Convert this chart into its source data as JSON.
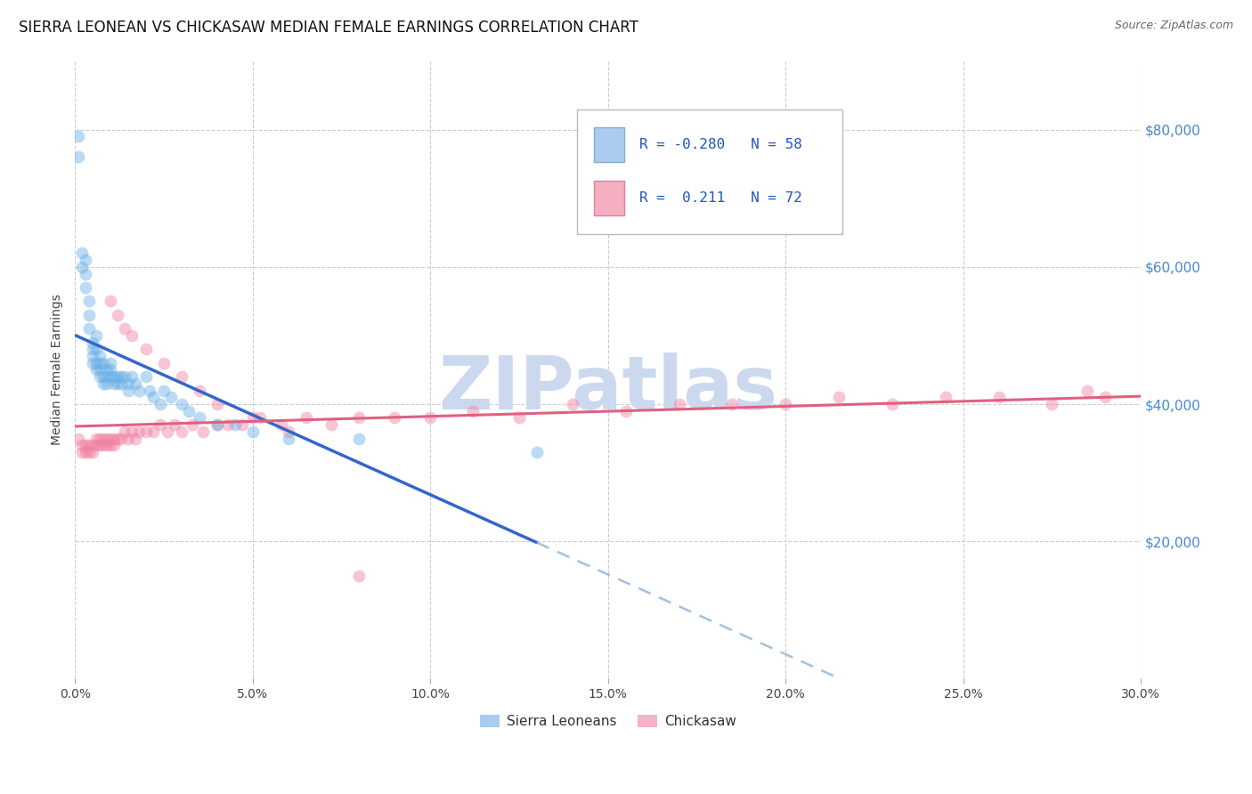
{
  "title": "SIERRA LEONEAN VS CHICKASAW MEDIAN FEMALE EARNINGS CORRELATION CHART",
  "source": "Source: ZipAtlas.com",
  "ylabel": "Median Female Earnings",
  "xlabel_ticks": [
    "0.0%",
    "5.0%",
    "10.0%",
    "15.0%",
    "20.0%",
    "25.0%",
    "30.0%"
  ],
  "ytick_labels": [
    "$20,000",
    "$40,000",
    "$60,000",
    "$80,000"
  ],
  "ytick_values": [
    20000,
    40000,
    60000,
    80000
  ],
  "xlim": [
    0.0,
    0.3
  ],
  "ylim": [
    0,
    90000
  ],
  "watermark": "ZIPatlas",
  "sl_color": "#6aaee6",
  "ck_color": "#f080a0",
  "sl_line_color": "#3366cc",
  "sl_dash_color": "#99bbdd",
  "ck_line_color": "#e06080",
  "background_color": "#ffffff",
  "grid_color": "#cccccc",
  "title_fontsize": 12,
  "axis_label_fontsize": 10,
  "tick_fontsize": 10,
  "watermark_color": "#ccd8ee",
  "watermark_fontsize": 60,
  "sl_R": -0.28,
  "sl_N": 58,
  "ck_R": 0.211,
  "ck_N": 72,
  "sl_x": [
    0.001,
    0.001,
    0.002,
    0.002,
    0.003,
    0.003,
    0.003,
    0.004,
    0.004,
    0.004,
    0.005,
    0.005,
    0.005,
    0.005,
    0.006,
    0.006,
    0.006,
    0.006,
    0.007,
    0.007,
    0.007,
    0.007,
    0.008,
    0.008,
    0.008,
    0.009,
    0.009,
    0.009,
    0.01,
    0.01,
    0.01,
    0.011,
    0.011,
    0.012,
    0.012,
    0.013,
    0.013,
    0.014,
    0.015,
    0.015,
    0.016,
    0.017,
    0.018,
    0.02,
    0.021,
    0.022,
    0.024,
    0.025,
    0.027,
    0.03,
    0.032,
    0.035,
    0.04,
    0.045,
    0.05,
    0.06,
    0.08,
    0.13
  ],
  "sl_y": [
    79000,
    76000,
    62000,
    60000,
    61000,
    59000,
    57000,
    55000,
    53000,
    51000,
    49000,
    48000,
    47000,
    46000,
    50000,
    48000,
    46000,
    45000,
    47000,
    46000,
    45000,
    44000,
    46000,
    44000,
    43000,
    45000,
    44000,
    43000,
    46000,
    45000,
    44000,
    44000,
    43000,
    44000,
    43000,
    44000,
    43000,
    44000,
    43000,
    42000,
    44000,
    43000,
    42000,
    44000,
    42000,
    41000,
    40000,
    42000,
    41000,
    40000,
    39000,
    38000,
    37000,
    37000,
    36000,
    35000,
    35000,
    33000
  ],
  "ck_x": [
    0.001,
    0.002,
    0.002,
    0.003,
    0.003,
    0.004,
    0.004,
    0.005,
    0.005,
    0.006,
    0.006,
    0.007,
    0.007,
    0.008,
    0.008,
    0.009,
    0.009,
    0.01,
    0.01,
    0.011,
    0.011,
    0.012,
    0.013,
    0.014,
    0.015,
    0.016,
    0.017,
    0.018,
    0.02,
    0.022,
    0.024,
    0.026,
    0.028,
    0.03,
    0.033,
    0.036,
    0.04,
    0.043,
    0.047,
    0.052,
    0.058,
    0.065,
    0.072,
    0.08,
    0.09,
    0.1,
    0.112,
    0.125,
    0.14,
    0.155,
    0.17,
    0.185,
    0.2,
    0.215,
    0.23,
    0.245,
    0.26,
    0.275,
    0.285,
    0.29,
    0.01,
    0.012,
    0.014,
    0.016,
    0.02,
    0.025,
    0.03,
    0.035,
    0.04,
    0.05,
    0.06,
    0.08
  ],
  "ck_y": [
    35000,
    34000,
    33000,
    34000,
    33000,
    34000,
    33000,
    34000,
    33000,
    35000,
    34000,
    35000,
    34000,
    35000,
    34000,
    35000,
    34000,
    35000,
    34000,
    35000,
    34000,
    35000,
    35000,
    36000,
    35000,
    36000,
    35000,
    36000,
    36000,
    36000,
    37000,
    36000,
    37000,
    36000,
    37000,
    36000,
    37000,
    37000,
    37000,
    38000,
    37000,
    38000,
    37000,
    38000,
    38000,
    38000,
    39000,
    38000,
    40000,
    39000,
    40000,
    40000,
    40000,
    41000,
    40000,
    41000,
    41000,
    40000,
    42000,
    41000,
    55000,
    53000,
    51000,
    50000,
    48000,
    46000,
    44000,
    42000,
    40000,
    38000,
    36000,
    15000
  ]
}
